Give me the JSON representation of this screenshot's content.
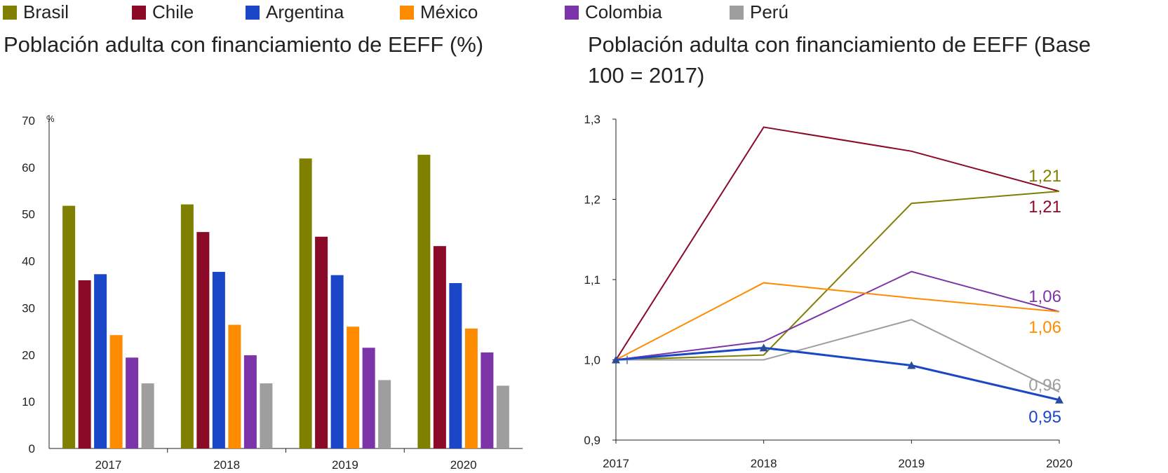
{
  "legend": [
    {
      "name": "Brasil",
      "color": "#808000"
    },
    {
      "name": "Chile",
      "color": "#8B0A28"
    },
    {
      "name": "Argentina",
      "color": "#1A46C8"
    },
    {
      "name": "México",
      "color": "#FF8C00"
    },
    {
      "name": "Colombia",
      "color": "#7B35A8"
    },
    {
      "name": "Perú",
      "color": "#9E9E9E"
    }
  ],
  "titles": {
    "left": "Población adulta con financiamiento de EEFF (%)",
    "right_line1": "Población adulta con financiamiento de EEFF (Base",
    "right_line2": "100 = 2017)"
  },
  "chart_data": [
    {
      "type": "bar",
      "title": "Población adulta con financiamiento de EEFF (%)",
      "ylabel": "%",
      "ylim": [
        0,
        70
      ],
      "yticks": [
        "0",
        "10",
        "20",
        "30",
        "40",
        "50",
        "60",
        "70"
      ],
      "categories": [
        "2017",
        "2018",
        "2019",
        "2020"
      ],
      "series": [
        {
          "name": "Brasil",
          "color": "#808000",
          "values": [
            51.8,
            52.1,
            61.9,
            62.7
          ]
        },
        {
          "name": "Chile",
          "color": "#8B0A28",
          "values": [
            35.9,
            46.2,
            45.2,
            43.2
          ]
        },
        {
          "name": "Argentina",
          "color": "#1A46C8",
          "values": [
            37.2,
            37.7,
            37.0,
            35.3
          ]
        },
        {
          "name": "México",
          "color": "#FF8C00",
          "values": [
            24.2,
            26.4,
            26.0,
            25.6
          ]
        },
        {
          "name": "Colombia",
          "color": "#7B35A8",
          "values": [
            19.4,
            19.9,
            21.5,
            20.5
          ]
        },
        {
          "name": "Perú",
          "color": "#9E9E9E",
          "values": [
            13.9,
            13.9,
            14.6,
            13.4
          ]
        }
      ]
    },
    {
      "type": "line",
      "title": "Población adulta con financiamiento de EEFF (Base 100 = 2017)",
      "ylim": [
        0.9,
        1.3
      ],
      "yticks": [
        "0,9",
        "1,0",
        "1,1",
        "1,2",
        "1,3"
      ],
      "x": [
        "2017",
        "2018",
        "2019",
        "2020"
      ],
      "series": [
        {
          "name": "Chile",
          "color": "#8B0A28",
          "values": [
            1.0,
            1.29,
            1.26,
            1.21
          ],
          "end_label": "1,21",
          "markers": false
        },
        {
          "name": "Brasil",
          "color": "#808000",
          "values": [
            1.0,
            1.006,
            1.195,
            1.21
          ],
          "end_label": "1,21",
          "markers": false
        },
        {
          "name": "Colombia",
          "color": "#7B35A8",
          "values": [
            1.0,
            1.023,
            1.11,
            1.06
          ],
          "end_label": "1,06",
          "markers": false
        },
        {
          "name": "México",
          "color": "#FF8C00",
          "values": [
            1.0,
            1.096,
            1.077,
            1.06
          ],
          "end_label": "1,06",
          "markers": false
        },
        {
          "name": "Perú",
          "color": "#9E9E9E",
          "values": [
            1.0,
            1.0,
            1.05,
            0.96
          ],
          "end_label": "0,96",
          "markers": false
        },
        {
          "name": "Argentina",
          "color": "#1A46C8",
          "values": [
            1.0,
            1.015,
            0.993,
            0.95
          ],
          "end_label": "0,95",
          "markers": true
        }
      ]
    }
  ]
}
